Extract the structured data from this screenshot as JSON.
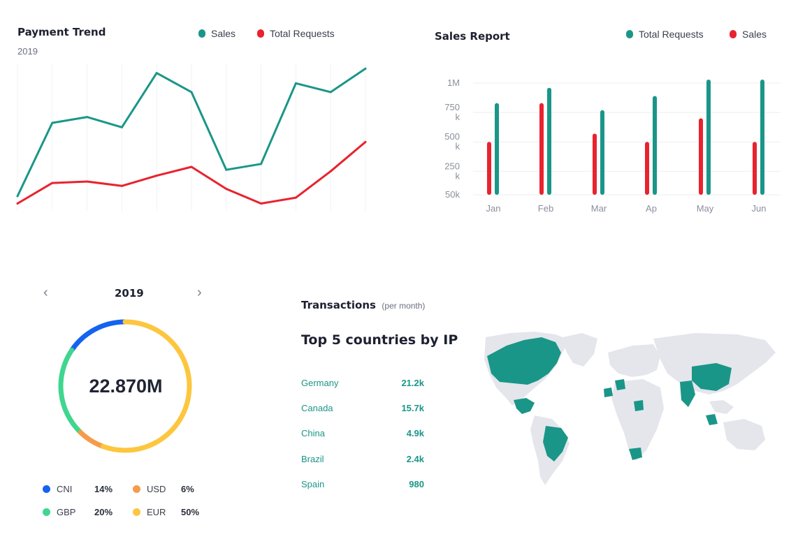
{
  "payment_trend": {
    "title": "Payment Trend",
    "year": "2019",
    "legend": [
      {
        "label": "Sales",
        "color": "#1a9688"
      },
      {
        "label": "Total Requests",
        "color": "#e8232e"
      }
    ]
  },
  "sales_report": {
    "title": "Sales Report",
    "legend": [
      {
        "label": "Total Requests",
        "color": "#1a9688"
      },
      {
        "label": "Sales",
        "color": "#e8232e"
      }
    ],
    "y_ticks": [
      {
        "line1": "1M",
        "line2": ""
      },
      {
        "line1": "750",
        "line2": "k"
      },
      {
        "line1": "500",
        "line2": "k"
      },
      {
        "line1": "250",
        "line2": "k"
      },
      {
        "line1": "50k",
        "line2": ""
      }
    ]
  },
  "currency": {
    "year": "2019",
    "total": "22.870M",
    "prev_icon": "chevron-left-icon",
    "next_icon": "chevron-right-icon",
    "items": [
      {
        "name": "CNI",
        "pct": "14%",
        "color": "#1463f0"
      },
      {
        "name": "USD",
        "pct": "6%",
        "color": "#f59b4a"
      },
      {
        "name": "GBP",
        "pct": "20%",
        "color": "#3fd68f"
      },
      {
        "name": "EUR",
        "pct": "50%",
        "color": "#fdc63f"
      }
    ]
  },
  "transactions": {
    "title": "Transactions",
    "subtitle": "(per month)",
    "heading": "Top 5 countries by IP",
    "countries": [
      {
        "name": "Germany",
        "value": "21.2k"
      },
      {
        "name": "Canada",
        "value": "15.7k"
      },
      {
        "name": "China",
        "value": "4.9k"
      },
      {
        "name": "Brazil",
        "value": "2.4k"
      },
      {
        "name": "Spain",
        "value": "980"
      }
    ],
    "map_highlight_color": "#1a9688",
    "map_base_color": "#e4e6ec"
  },
  "chart_data": [
    {
      "type": "line",
      "title": "Payment Trend",
      "subtitle": "2019",
      "x": [
        1,
        2,
        3,
        4,
        5,
        6,
        7,
        8,
        9,
        10,
        11
      ],
      "ylim": [
        0,
        100
      ],
      "series": [
        {
          "name": "Sales",
          "color": "#1a9688",
          "values": [
            10,
            60,
            64,
            57,
            94,
            81,
            28,
            32,
            87,
            81,
            97
          ]
        },
        {
          "name": "Total Requests",
          "color": "#e8232e",
          "values": [
            5,
            19,
            20,
            17,
            24,
            30,
            15,
            5,
            9,
            27,
            47
          ]
        }
      ]
    },
    {
      "type": "bar",
      "title": "Sales Report",
      "categories": [
        "Jan",
        "Feb",
        "Mar",
        "Ap",
        "May",
        "Jun"
      ],
      "ylim": [
        50000,
        1000000
      ],
      "series": [
        {
          "name": "Total Requests",
          "color": "#1a9688",
          "values": [
            830000,
            960000,
            770000,
            890000,
            1030000,
            1030000
          ]
        },
        {
          "name": "Sales",
          "color": "#e8232e",
          "values": [
            500000,
            830000,
            570000,
            500000,
            700000,
            500000
          ]
        }
      ]
    },
    {
      "type": "pie",
      "title": "2019",
      "categories": [
        "CNI",
        "USD",
        "GBP",
        "EUR"
      ],
      "values": [
        14,
        6,
        20,
        50
      ]
    }
  ]
}
